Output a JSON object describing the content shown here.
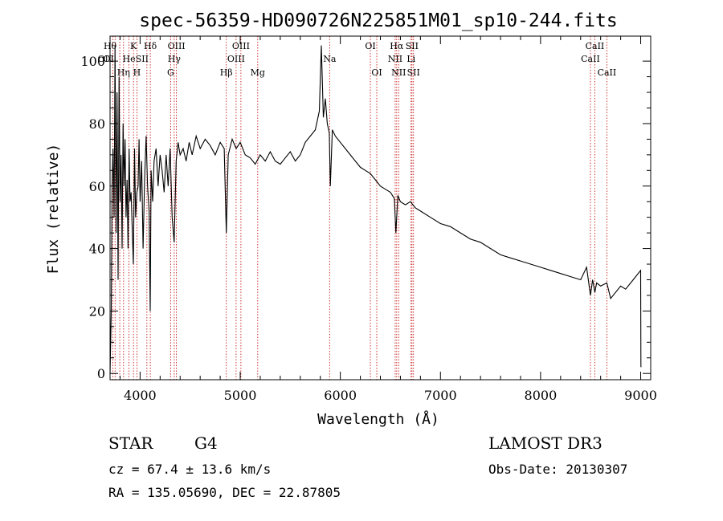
{
  "chart_data": {
    "type": "line",
    "title": "spec-56359-HD090726N225851M01_sp10-244.fits",
    "xlabel": "Wavelength (Å)",
    "ylabel": "Flux (relative)",
    "xlim": [
      3700,
      9100
    ],
    "ylim": [
      -2,
      108
    ],
    "xticks": [
      4000,
      5000,
      6000,
      7000,
      8000,
      9000
    ],
    "xtick_labels": [
      "4000",
      "5000",
      "6000",
      "7000",
      "8000",
      "9000"
    ],
    "yticks": [
      0,
      20,
      40,
      60,
      80,
      100
    ],
    "ytick_labels": [
      "0",
      "20",
      "40",
      "60",
      "80",
      "100"
    ],
    "series": [
      {
        "name": "spectrum",
        "x": [
          3700,
          3712,
          3720,
          3730,
          3740,
          3750,
          3760,
          3770,
          3780,
          3790,
          3800,
          3810,
          3820,
          3830,
          3840,
          3850,
          3860,
          3870,
          3880,
          3890,
          3900,
          3910,
          3920,
          3933,
          3945,
          3955,
          3968,
          3980,
          3990,
          4000,
          4015,
          4030,
          4045,
          4060,
          4075,
          4090,
          4101,
          4110,
          4125,
          4140,
          4160,
          4180,
          4200,
          4220,
          4240,
          4260,
          4280,
          4300,
          4320,
          4340,
          4360,
          4380,
          4400,
          4430,
          4460,
          4490,
          4520,
          4560,
          4600,
          4650,
          4700,
          4750,
          4800,
          4840,
          4861,
          4880,
          4920,
          4960,
          5000,
          5050,
          5100,
          5150,
          5200,
          5250,
          5300,
          5350,
          5400,
          5450,
          5500,
          5550,
          5600,
          5650,
          5700,
          5750,
          5790,
          5810,
          5830,
          5850,
          5870,
          5890,
          5900,
          5920,
          5950,
          6000,
          6050,
          6100,
          6150,
          6200,
          6250,
          6300,
          6350,
          6400,
          6450,
          6500,
          6540,
          6555,
          6563,
          6575,
          6600,
          6650,
          6700,
          6750,
          6800,
          6900,
          7000,
          7100,
          7200,
          7300,
          7400,
          7500,
          7600,
          7700,
          7800,
          7900,
          8000,
          8100,
          8200,
          8300,
          8400,
          8460,
          8498,
          8520,
          8542,
          8560,
          8600,
          8662,
          8700,
          8800,
          8850,
          8900,
          8950,
          9000,
          9002,
          9003
        ],
        "values": [
          0,
          20,
          60,
          72,
          50,
          105,
          45,
          90,
          30,
          95,
          55,
          70,
          40,
          80,
          60,
          75,
          50,
          62,
          40,
          72,
          55,
          58,
          48,
          35,
          72,
          50,
          58,
          60,
          75,
          55,
          68,
          40,
          62,
          76,
          60,
          52,
          20,
          65,
          55,
          68,
          72,
          60,
          70,
          65,
          58,
          70,
          60,
          72,
          50,
          42,
          68,
          74,
          70,
          72,
          68,
          74,
          70,
          76,
          72,
          75,
          73,
          70,
          74,
          72,
          45,
          70,
          75,
          72,
          74,
          70,
          69,
          67,
          70,
          68,
          71,
          68,
          67,
          69,
          71,
          68,
          70,
          74,
          76,
          78,
          84,
          105,
          82,
          88,
          80,
          77,
          60,
          78,
          76,
          74,
          72,
          70,
          68,
          66,
          65,
          64,
          62,
          60,
          59,
          58,
          56,
          45,
          50,
          57,
          55,
          54,
          55,
          53,
          52,
          50,
          48,
          47,
          45,
          43,
          42,
          40,
          38,
          37,
          36,
          35,
          34,
          33,
          32,
          31,
          30,
          34,
          25,
          30,
          26,
          29,
          28,
          29,
          24,
          28,
          27,
          29,
          31,
          33,
          3,
          2
        ]
      }
    ],
    "line_markers": [
      {
        "name": "OII",
        "x": 3727,
        "row": 2,
        "label_dx": -10
      },
      {
        "name": "Hθ",
        "x": 3797,
        "row": 1,
        "label_dx": -12
      },
      {
        "name": "OI",
        "x": 3750,
        "row": 2,
        "label_dx": -8
      },
      {
        "name": "Hη",
        "x": 3835,
        "row": 3,
        "label_dx": 0
      },
      {
        "name": "He",
        "x": 3889,
        "row": 2,
        "label_dx": 0
      },
      {
        "name": "K",
        "x": 3934,
        "row": 1,
        "label_dx": 0
      },
      {
        "name": "H",
        "x": 3968,
        "row": 3,
        "label_dx": 0
      },
      {
        "name": "SII",
        "x": 4068,
        "row": 2,
        "label_dx": -6
      },
      {
        "name": "Hδ",
        "x": 4102,
        "row": 1,
        "label_dx": 0
      },
      {
        "name": "G",
        "x": 4305,
        "row": 3,
        "label_dx": 0
      },
      {
        "name": "Hγ",
        "x": 4341,
        "row": 2,
        "label_dx": 0
      },
      {
        "name": "OIII",
        "x": 4363,
        "row": 1,
        "label_dx": 0
      },
      {
        "name": "Hβ",
        "x": 4861,
        "row": 3,
        "label_dx": 0
      },
      {
        "name": "OIII",
        "x": 4959,
        "row": 2,
        "label_dx": 0
      },
      {
        "name": "OIII",
        "x": 5007,
        "row": 1,
        "label_dx": 0
      },
      {
        "name": "Mg",
        "x": 5175,
        "row": 3,
        "label_dx": 0
      },
      {
        "name": "Na",
        "x": 5893,
        "row": 2,
        "label_dx": 0
      },
      {
        "name": "OI",
        "x": 6300,
        "row": 1,
        "label_dx": 0
      },
      {
        "name": "OI",
        "x": 6364,
        "row": 3,
        "label_dx": 0
      },
      {
        "name": "NII",
        "x": 6548,
        "row": 2,
        "label_dx": 0
      },
      {
        "name": "Hα",
        "x": 6563,
        "row": 1,
        "label_dx": 0
      },
      {
        "name": "NII",
        "x": 6583,
        "row": 3,
        "label_dx": 0
      },
      {
        "name": "Li",
        "x": 6707,
        "row": 2,
        "label_dx": 0
      },
      {
        "name": "SII",
        "x": 6716,
        "row": 1,
        "label_dx": 0
      },
      {
        "name": "SII",
        "x": 6731,
        "row": 3,
        "label_dx": 0
      },
      {
        "name": "CaII",
        "x": 8498,
        "row": 2,
        "label_dx": 0
      },
      {
        "name": "CaII",
        "x": 8542,
        "row": 1,
        "label_dx": 0
      },
      {
        "name": "CaII",
        "x": 8662,
        "row": 3,
        "label_dx": 0
      }
    ]
  },
  "info": {
    "object_class": "STAR",
    "subclass": "G4",
    "survey": "LAMOST DR3",
    "redshift": "cz = 67.4 ± 13.6 km/s",
    "obs_date": "Obs-Date: 20130307",
    "coords": "RA = 135.05690, DEC =  22.87805"
  },
  "colors": {
    "marker_line": "#c00000",
    "spectrum": "#000000"
  }
}
